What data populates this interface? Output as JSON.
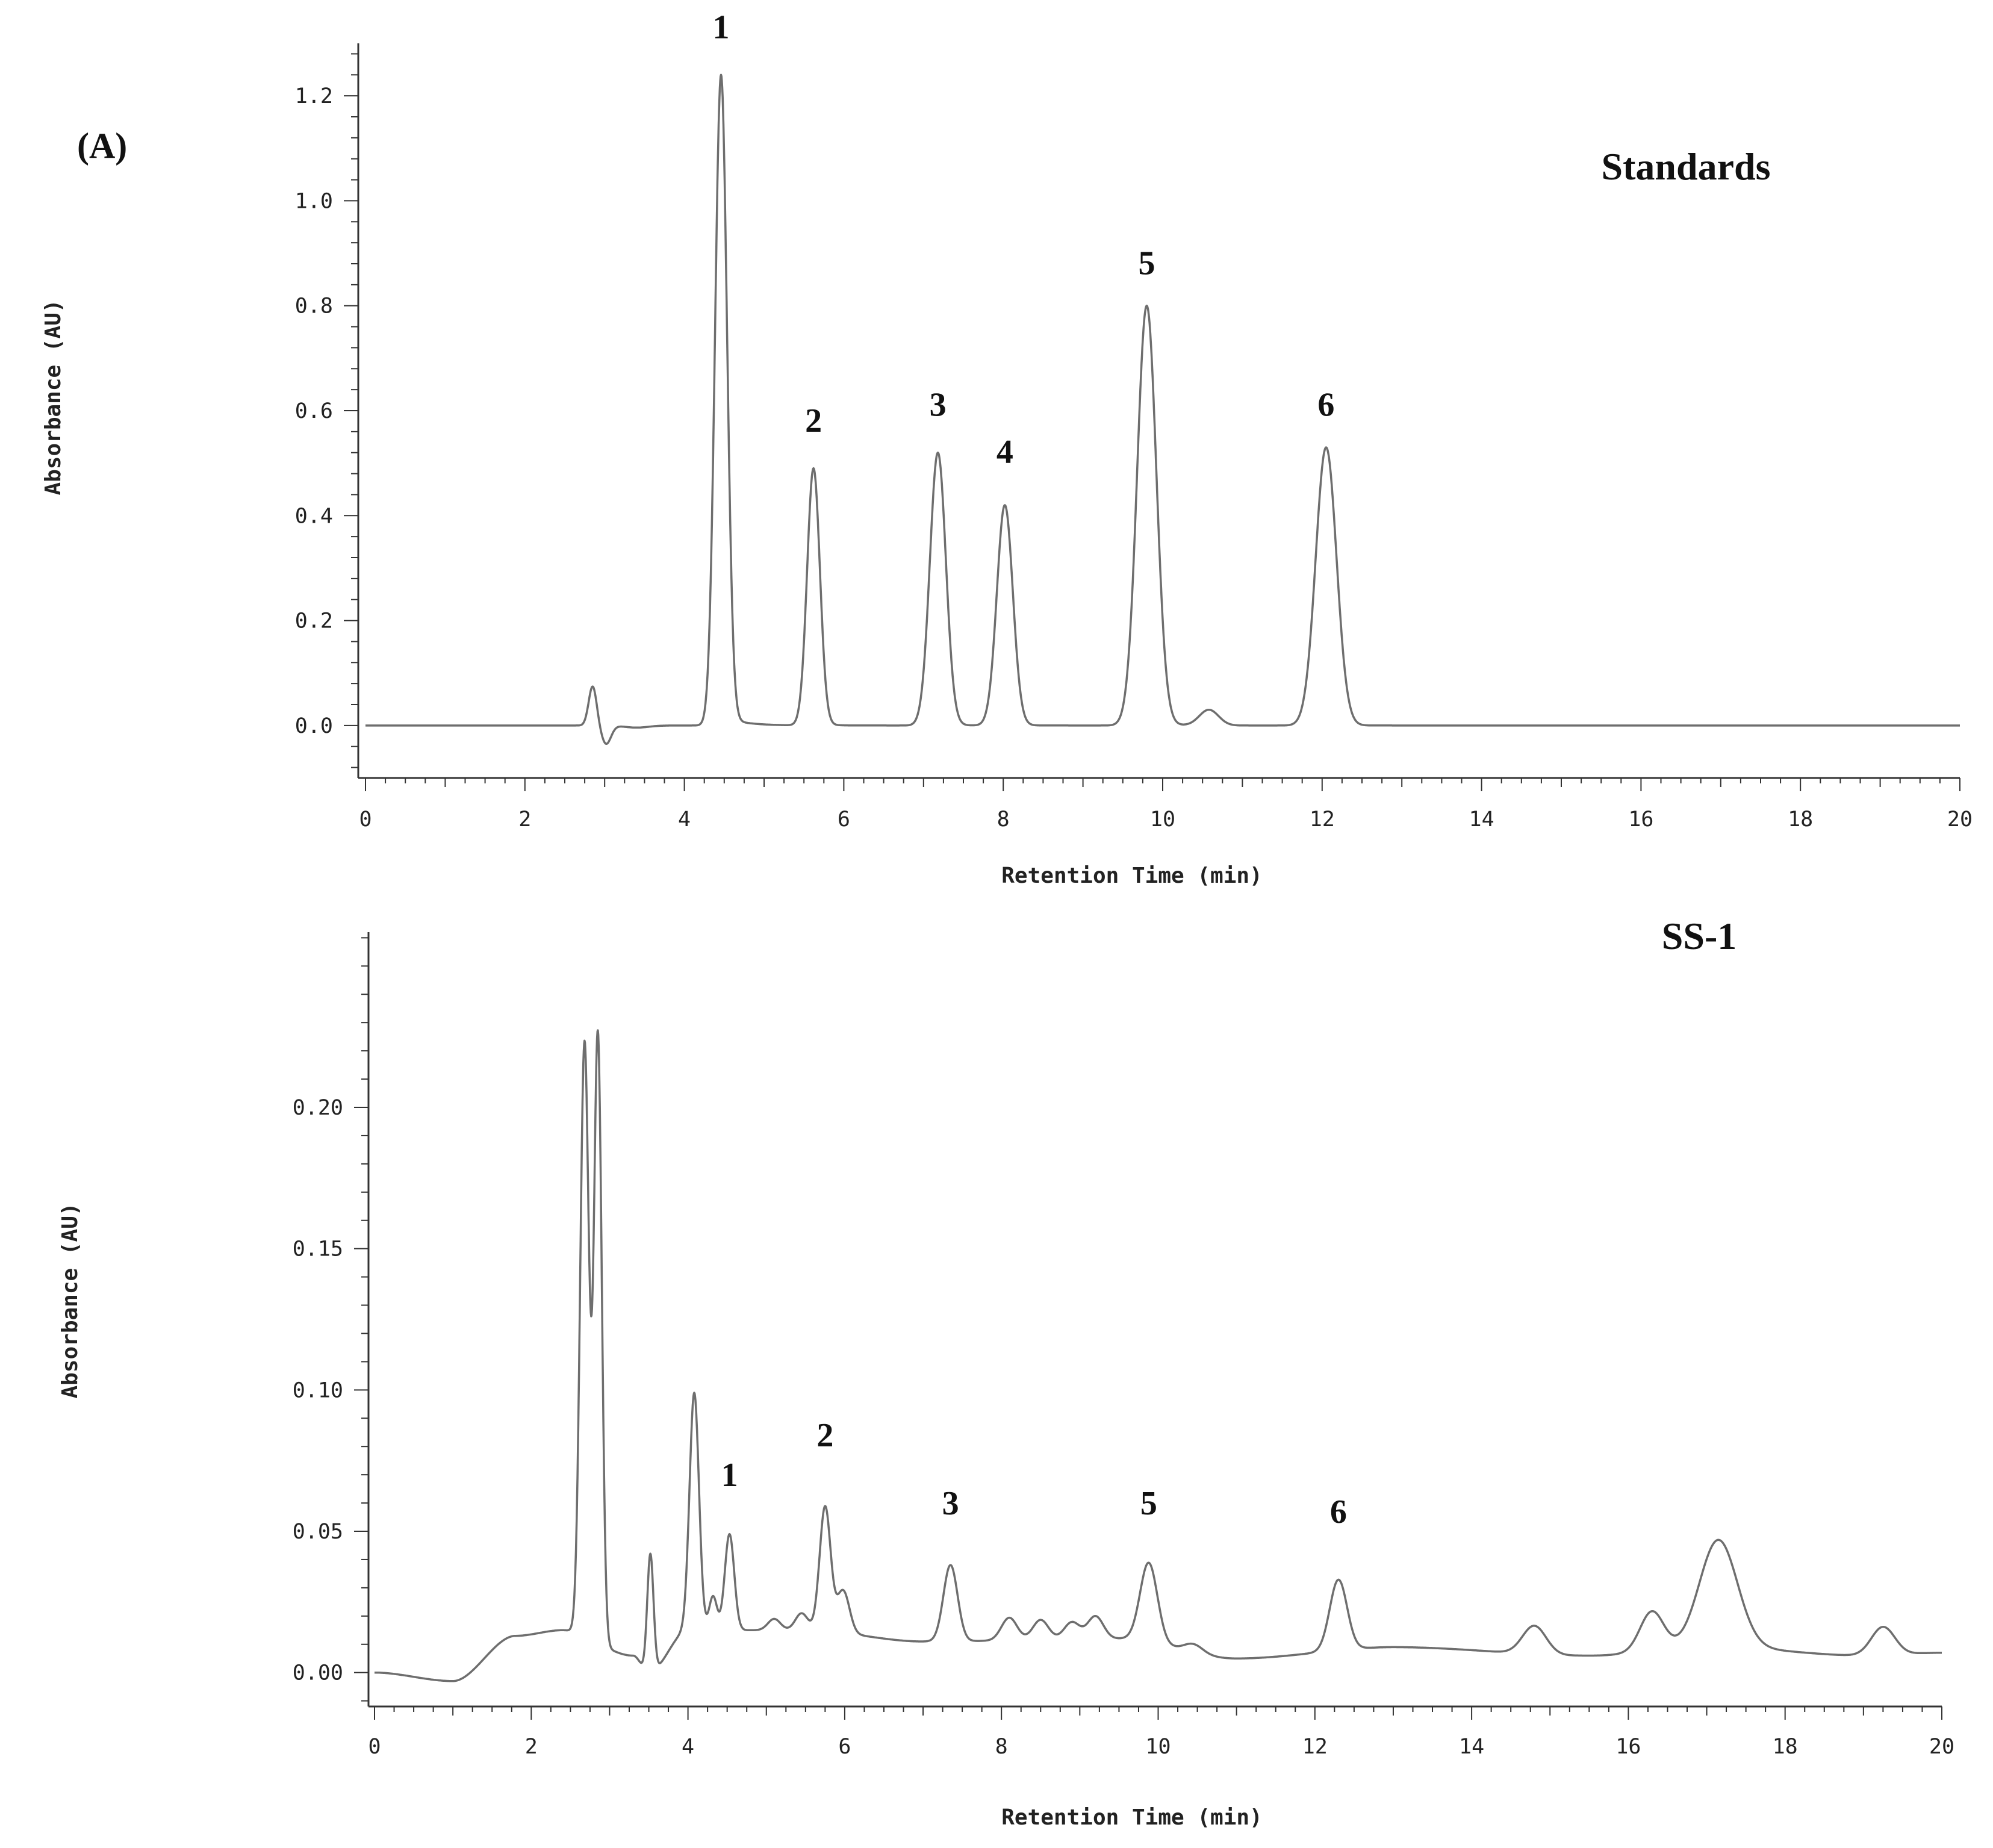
{
  "panel_letter": "(A)",
  "chart_data": [
    {
      "type": "line",
      "title": "Standards",
      "xlabel": "Retention Time (min)",
      "ylabel": "Absorbance (AU)",
      "xlim": [
        0,
        20
      ],
      "ylim": [
        -0.1,
        1.3
      ],
      "x_ticks": [
        0,
        2,
        4,
        6,
        8,
        10,
        12,
        14,
        16,
        18,
        20
      ],
      "x_tick_labels": [
        "0",
        "2",
        "4",
        "6",
        "8",
        "10",
        "12",
        "14",
        "16",
        "18",
        "20"
      ],
      "y_ticks": [
        0.0,
        0.2,
        0.4,
        0.6,
        0.8,
        1.0,
        1.2
      ],
      "y_tick_labels": [
        "0.0",
        "0.2",
        "0.4",
        "0.6",
        "0.8",
        "1.0",
        "1.2"
      ],
      "baseline": 0.0,
      "trace_peaks": [
        {
          "x": 2.85,
          "height": 0.075,
          "width": 0.05
        },
        {
          "x": 3.02,
          "height": -0.035,
          "width": 0.06
        },
        {
          "x": 3.4,
          "height": -0.004,
          "width": 0.15
        },
        {
          "x": 4.46,
          "height": 1.24,
          "width": 0.075,
          "tail": 0.25
        },
        {
          "x": 5.62,
          "height": 0.49,
          "width": 0.08,
          "tail": 0.12
        },
        {
          "x": 7.18,
          "height": 0.52,
          "width": 0.1,
          "tail": 0.12
        },
        {
          "x": 8.02,
          "height": 0.42,
          "width": 0.1,
          "tail": 0.12
        },
        {
          "x": 9.8,
          "height": 0.8,
          "width": 0.12,
          "tail": 0.15
        },
        {
          "x": 10.58,
          "height": 0.03,
          "width": 0.12
        },
        {
          "x": 12.05,
          "height": 0.53,
          "width": 0.13,
          "tail": 0.12
        }
      ],
      "peak_labels": [
        {
          "label": "1",
          "x": 4.46,
          "y": 1.31
        },
        {
          "label": "2",
          "x": 5.62,
          "y": 0.56
        },
        {
          "label": "3",
          "x": 7.18,
          "y": 0.59
        },
        {
          "label": "4",
          "x": 8.02,
          "y": 0.5
        },
        {
          "label": "5",
          "x": 9.8,
          "y": 0.86
        },
        {
          "label": "6",
          "x": 12.05,
          "y": 0.59
        }
      ]
    },
    {
      "type": "line",
      "title": "SS-1",
      "xlabel": "Retention Time (min)",
      "ylabel": "Absorbance (AU)",
      "xlim": [
        0,
        20
      ],
      "ylim": [
        -0.012,
        0.262
      ],
      "x_ticks": [
        0,
        2,
        4,
        6,
        8,
        10,
        12,
        14,
        16,
        18,
        20
      ],
      "x_tick_labels": [
        "0",
        "2",
        "4",
        "6",
        "8",
        "10",
        "12",
        "14",
        "16",
        "18",
        "20"
      ],
      "y_ticks": [
        0.0,
        0.05,
        0.1,
        0.15,
        0.2
      ],
      "y_tick_labels": [
        "0.00",
        "0.05",
        "0.10",
        "0.15",
        "0.20"
      ],
      "baseline_points": [
        [
          0,
          0.0
        ],
        [
          1.0,
          -0.003
        ],
        [
          1.8,
          0.013
        ],
        [
          2.4,
          0.015
        ],
        [
          3.3,
          0.006
        ],
        [
          3.5,
          0.0
        ],
        [
          4.0,
          0.015
        ],
        [
          5.5,
          0.015
        ],
        [
          7.0,
          0.011
        ],
        [
          9.5,
          0.012
        ],
        [
          11.0,
          0.005
        ],
        [
          13.0,
          0.009
        ],
        [
          15.5,
          0.006
        ],
        [
          17.0,
          0.009
        ],
        [
          19.0,
          0.006
        ],
        [
          20.0,
          0.007
        ]
      ],
      "trace_peaks": [
        {
          "x": 2.68,
          "height": 0.21,
          "width": 0.055
        },
        {
          "x": 2.85,
          "height": 0.215,
          "width": 0.05
        },
        {
          "x": 3.52,
          "height": 0.042,
          "width": 0.04
        },
        {
          "x": 4.08,
          "height": 0.084,
          "width": 0.06
        },
        {
          "x": 4.32,
          "height": 0.012,
          "width": 0.05
        },
        {
          "x": 4.53,
          "height": 0.034,
          "width": 0.06
        },
        {
          "x": 5.1,
          "height": 0.004,
          "width": 0.08
        },
        {
          "x": 5.45,
          "height": 0.006,
          "width": 0.08
        },
        {
          "x": 5.75,
          "height": 0.044,
          "width": 0.07
        },
        {
          "x": 5.98,
          "height": 0.015,
          "width": 0.08
        },
        {
          "x": 7.35,
          "height": 0.027,
          "width": 0.09
        },
        {
          "x": 8.1,
          "height": 0.008,
          "width": 0.1
        },
        {
          "x": 8.5,
          "height": 0.007,
          "width": 0.1
        },
        {
          "x": 8.9,
          "height": 0.006,
          "width": 0.1
        },
        {
          "x": 9.2,
          "height": 0.008,
          "width": 0.1
        },
        {
          "x": 9.88,
          "height": 0.028,
          "width": 0.11
        },
        {
          "x": 10.45,
          "height": 0.003,
          "width": 0.12
        },
        {
          "x": 12.3,
          "height": 0.025,
          "width": 0.11
        },
        {
          "x": 14.8,
          "height": 0.01,
          "width": 0.15
        },
        {
          "x": 16.3,
          "height": 0.014,
          "width": 0.15
        },
        {
          "x": 17.15,
          "height": 0.038,
          "width": 0.24,
          "tail": 0.7
        },
        {
          "x": 19.25,
          "height": 0.01,
          "width": 0.15
        }
      ],
      "peak_labels": [
        {
          "label": "1",
          "x": 4.53,
          "y": 0.066
        },
        {
          "label": "2",
          "x": 5.75,
          "y": 0.08
        },
        {
          "label": "3",
          "x": 7.35,
          "y": 0.056
        },
        {
          "label": "5",
          "x": 9.88,
          "y": 0.056
        },
        {
          "label": "6",
          "x": 12.3,
          "y": 0.053
        }
      ]
    }
  ]
}
